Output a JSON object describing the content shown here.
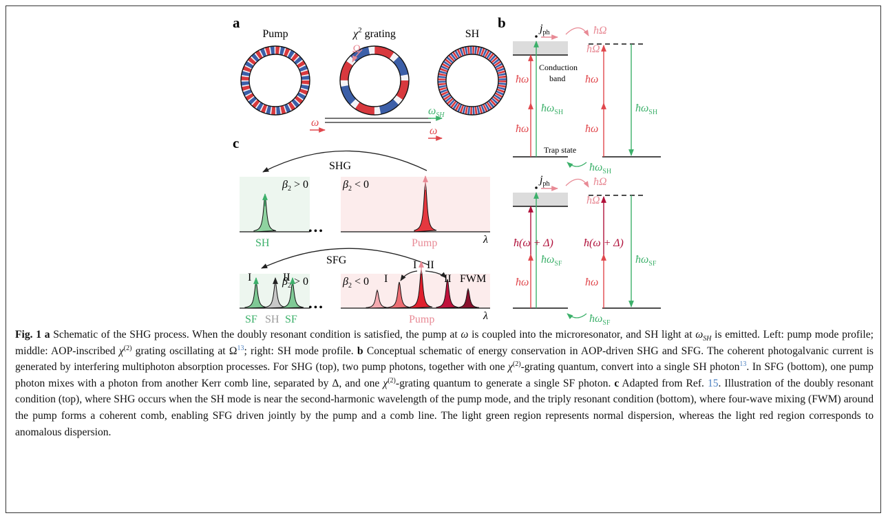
{
  "figure": {
    "a": {
      "label": "a",
      "pump": "Pump",
      "grating": {
        "chi": "χ",
        "sup": "2",
        "text": " grating"
      },
      "sh": "SH",
      "omega_cap": "Ω",
      "omega_in": "ω",
      "omega_sh": {
        "base": "ω",
        "sub": "SH"
      },
      "omega_out": "ω"
    },
    "b": {
      "label": "b",
      "top": {
        "jph": {
          "base": "j",
          "sub": "ph"
        },
        "hOmega_1": "ħΩ",
        "hOmega_2": "ħΩ",
        "conduction_band": [
          "Conduction",
          "band"
        ],
        "homega": [
          "ħω",
          "ħω",
          "ħω",
          "ħω"
        ],
        "hsh_left": {
          "base": "ħω",
          "sub": "SH"
        },
        "hsh_right": {
          "base": "ħω",
          "sub": "SH"
        },
        "trap_state": "Trap state",
        "hsh_bottom": {
          "base": "ħω",
          "sub": "SH"
        }
      },
      "bottom": {
        "jph": {
          "base": "j",
          "sub": "ph"
        },
        "hOmega_1": "ħΩ",
        "hOmega_2": "ħΩ",
        "hdelta": [
          "ħ(ω + Δ)",
          "ħ(ω + Δ)"
        ],
        "homega": [
          "ħω",
          "ħω"
        ],
        "hsf_left": {
          "base": "ħω",
          "sub": "SF"
        },
        "hsf_right": {
          "base": "ħω",
          "sub": "SF"
        },
        "hsf_bottom": {
          "base": "ħω",
          "sub": "SF"
        }
      }
    },
    "c": {
      "label": "c",
      "top": {
        "process": "SHG",
        "beta_pos": {
          "base": "β",
          "sub": "2",
          "rel": " > 0"
        },
        "beta_neg": {
          "base": "β",
          "sub": "2",
          "rel": " < 0"
        },
        "dots": "•••",
        "sh": "SH",
        "pump": "Pump",
        "lambda": "λ"
      },
      "bottom": {
        "process": "SFG",
        "beta_pos": {
          "base": "β",
          "sub": "2",
          "rel": " > 0"
        },
        "beta_neg": {
          "base": "β",
          "sub": "2",
          "rel": " < 0"
        },
        "dots": "•••",
        "orders": [
          "I",
          "II",
          "I",
          "II",
          "I",
          "II"
        ],
        "fwm": "FWM",
        "sf_1": "SF",
        "sh": "SH",
        "sf_2": "SF",
        "pump": "Pump",
        "lambda": "λ"
      }
    }
  },
  "caption": [
    "Fig. 1 a",
    " Schematic of the SHG process. When the doubly resonant condition is satisfied, the pump at ",
    "ω",
    " is coupled into the microresonator, and SH light at ",
    "ω",
    "SH",
    " is emitted. Left: pump mode profile; middle: AOP-inscribed ",
    "χ",
    "(2)",
    " grating oscillating at Ω",
    "13",
    "; right: SH mode profile. ",
    "b",
    " Conceptual schematic of energy conservation in AOP-driven SHG and SFG. The coherent photogalvanic current is generated by interfering multiphoton absorption processes. For SHG (top), two pump photons, together with one ",
    "χ",
    "(2)",
    "-grating quantum, convert into a single SH photon",
    "13",
    ". In SFG (bottom), one pump photon mixes with a photon from another Kerr comb line, separated by Δ, and one ",
    "χ",
    "(2)",
    "-grating quantum to generate a single SF photon. ",
    "c",
    " Adapted from Ref. ",
    "15",
    ". Illustration of the doubly resonant condition (top), where SHG occurs when the SH mode is near the second-harmonic wavelength of the pump mode, and the triply resonant condition (bottom), where four-wave mixing (FWM) around the pump forms a coherent comb, enabling SFG driven jointly by the pump and a comb line. The light green region represents normal dispersion, whereas the light red region corresponds to anomalous dispersion."
  ]
}
